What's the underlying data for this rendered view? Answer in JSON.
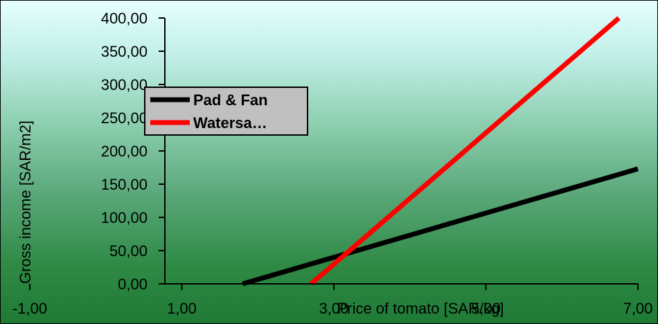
{
  "chart_data": {
    "type": "line",
    "title": "",
    "xlabel": "Price of tomato [SAR/kg]",
    "ylabel": "Gross income [SAR/m2]",
    "xlim": [
      -1,
      7
    ],
    "ylim": [
      0,
      400
    ],
    "x_ticks": [
      "-1,00",
      "1,00",
      "3,00",
      "5,00",
      "7,00"
    ],
    "x_tick_values": [
      -1,
      1,
      3,
      5,
      7
    ],
    "y_ticks": [
      "0,00",
      "50,00",
      "100,00",
      "150,00",
      "200,00",
      "250,00",
      "300,00",
      "350,00",
      "400,00"
    ],
    "y_tick_values": [
      0,
      50,
      100,
      150,
      200,
      250,
      300,
      350,
      400
    ],
    "grid": false,
    "legend_position": "left",
    "series": [
      {
        "name": "Pad & Fan",
        "color": "#000000",
        "x": [
          1.8,
          7.0
        ],
        "y": [
          0,
          173
        ]
      },
      {
        "name": "Watersa…",
        "color": "#ff0000",
        "x": [
          2.7,
          6.75
        ],
        "y": [
          0,
          400
        ]
      }
    ]
  }
}
